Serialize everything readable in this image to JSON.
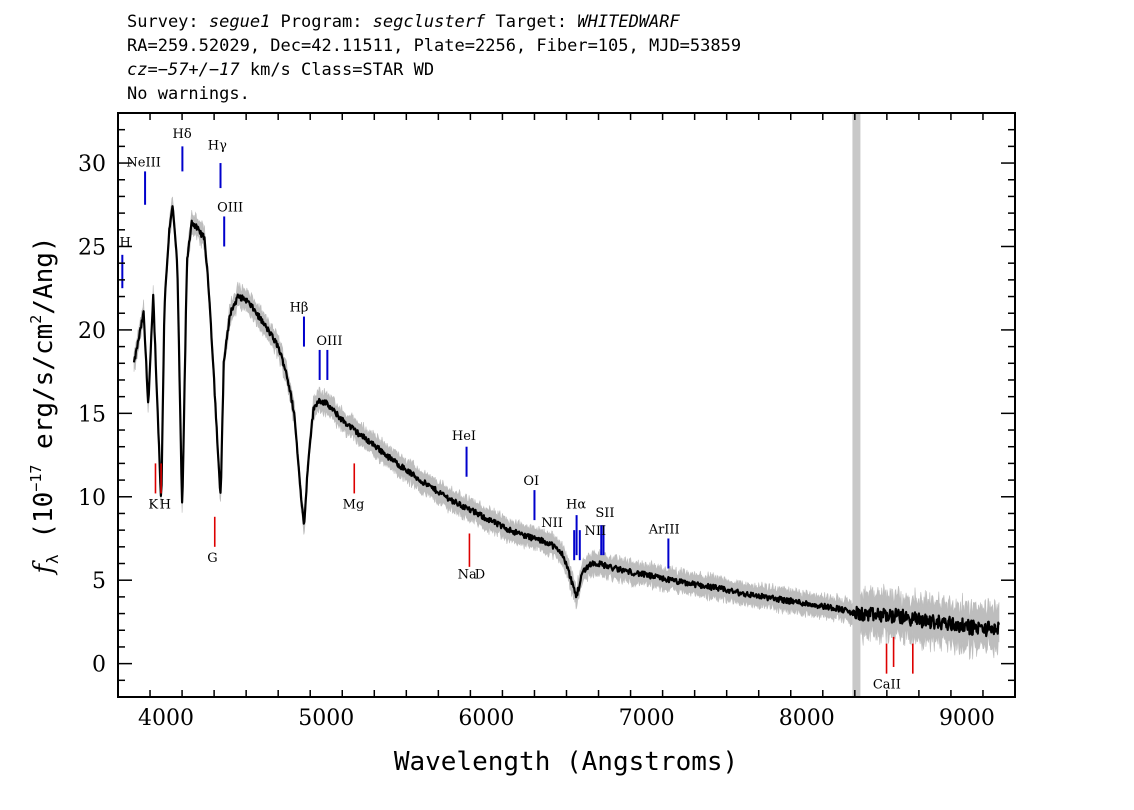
{
  "header": {
    "survey_label": "Survey: ",
    "survey": "segue1",
    "program_label": " Program: ",
    "program": "segclusterf",
    "target_label": " Target: ",
    "target": "WHITEDWARF",
    "line2": "RA=259.52029, Dec=42.11511, Plate=2256, Fiber=105, MJD=53859",
    "cz_label": "cz",
    "cz_value": "=−57+/−17",
    "cz_units": " km/s Class=STAR WD",
    "line4": "No warnings."
  },
  "colors": {
    "flux": "#000000",
    "error_band": "#bdbdbd",
    "masked_region": "#c8c8c8",
    "emission_marker": "#0000cc",
    "absorption_marker": "#dd0000"
  },
  "chart_data": {
    "type": "line",
    "title": "",
    "xlabel": "Wavelength (Angstroms)",
    "ylabel_prefix": "f",
    "ylabel_sub": "λ",
    "ylabel_a": " (10",
    "ylabel_exp1": "−17",
    "ylabel_b": " erg/s/cm",
    "ylabel_exp2": "2",
    "ylabel_c": "/Ang)",
    "xlim": [
      3700,
      9300
    ],
    "ylim": [
      -2,
      33
    ],
    "xticks": [
      4000,
      5000,
      6000,
      7000,
      8000,
      9000
    ],
    "yticks": [
      0,
      5,
      10,
      15,
      20,
      25,
      30
    ],
    "grid": false,
    "masked_region_x": 8310,
    "series": [
      {
        "x": [
          3800,
          3830,
          3860,
          3889,
          3920,
          3950,
          3970,
          3990,
          4020,
          4040,
          4070,
          4101,
          4130,
          4160,
          4200,
          4240,
          4270,
          4300,
          4330,
          4341,
          4360,
          4400,
          4450,
          4500,
          4550,
          4600,
          4650,
          4700,
          4750,
          4800,
          4830,
          4861,
          4890,
          4920,
          4950,
          5000,
          5100,
          5200,
          5300,
          5400,
          5500,
          5600,
          5700,
          5800,
          5900,
          6000,
          6100,
          6200,
          6300,
          6400,
          6480,
          6520,
          6563,
          6600,
          6650,
          6700,
          6800,
          7000,
          7200,
          7400,
          7600,
          7800,
          8000,
          8200,
          8300,
          8400,
          8500,
          8600,
          8700,
          8800,
          8900,
          9000,
          9100,
          9200
        ],
        "y": [
          18,
          19.5,
          21,
          15.5,
          22,
          14.5,
          9.5,
          21.5,
          26,
          27.5,
          24,
          9,
          24,
          26.5,
          26,
          25.5,
          22,
          17,
          11.5,
          10,
          18,
          21,
          22,
          21.8,
          21.2,
          20.5,
          19.8,
          19,
          17.5,
          15,
          11.5,
          8.2,
          12.5,
          15.2,
          15.8,
          15.6,
          14.6,
          13.8,
          13.1,
          12.3,
          11.6,
          10.9,
          10.3,
          9.7,
          9.2,
          8.7,
          8.2,
          7.8,
          7.5,
          7.2,
          6.5,
          5.3,
          4.0,
          5.5,
          6.0,
          6.0,
          5.7,
          5.3,
          4.9,
          4.6,
          4.2,
          3.9,
          3.6,
          3.3,
          3.0,
          2.9,
          2.9,
          2.8,
          2.6,
          2.5,
          2.4,
          2.2,
          2.1,
          2.1
        ]
      }
    ],
    "emission_lines": [
      {
        "label": "H",
        "x": 3727,
        "y0": 22.5,
        "y1": 24.5
      },
      {
        "label": "NeIII",
        "x": 3869,
        "y0": 27.5,
        "y1": 29.5
      },
      {
        "label": "Hδ",
        "x": 4102,
        "y0": 29.5,
        "y1": 31.0
      },
      {
        "label": "Hγ",
        "x": 4340,
        "y0": 28.5,
        "y1": 30.0
      },
      {
        "label": "OIII",
        "x": 4363,
        "y0": 25.0,
        "y1": 26.8
      },
      {
        "label": "Hβ",
        "x": 4861,
        "y0": 19.0,
        "y1": 20.8
      },
      {
        "label": "OIII",
        "x": 4959,
        "y0": 17.0,
        "y1": 18.8
      },
      {
        "label": "OIII",
        "x": 5007,
        "y0": 17.0,
        "y1": 18.8
      },
      {
        "label": "HeI",
        "x": 5876,
        "y0": 11.2,
        "y1": 13.0
      },
      {
        "label": "OI",
        "x": 6300,
        "y0": 8.6,
        "y1": 10.4
      },
      {
        "label": "NII",
        "x": 6548,
        "y0": 6.2,
        "y1": 8.0
      },
      {
        "label": "Hα",
        "x": 6563,
        "y0": 6.5,
        "y1": 8.9
      },
      {
        "label": "NII",
        "x": 6583,
        "y0": 6.2,
        "y1": 8.0
      },
      {
        "label": "SII",
        "x": 6717,
        "y0": 6.5,
        "y1": 8.3
      },
      {
        "label": "SII",
        "x": 6731,
        "y0": 6.5,
        "y1": 8.3
      },
      {
        "label": "ArIII",
        "x": 7136,
        "y0": 5.7,
        "y1": 7.5
      }
    ],
    "emission_label_positions": [
      {
        "text": "H",
        "x": 3745,
        "y": 25.0
      },
      {
        "text": "NeIII",
        "x": 3860,
        "y": 29.8
      },
      {
        "text": "Hδ",
        "x": 4100,
        "y": 31.5
      },
      {
        "text": "Hγ",
        "x": 4320,
        "y": 30.8
      },
      {
        "text": "OIII",
        "x": 4400,
        "y": 27.1
      },
      {
        "text": "Hβ",
        "x": 4830,
        "y": 21.1
      },
      {
        "text": "OIII",
        "x": 5020,
        "y": 19.1
      },
      {
        "text": "HeI",
        "x": 5860,
        "y": 13.4
      },
      {
        "text": "OI",
        "x": 6280,
        "y": 10.7
      },
      {
        "text": "NII",
        "x": 6410,
        "y": 8.2
      },
      {
        "text": "Hα",
        "x": 6560,
        "y": 9.3
      },
      {
        "text": "SII",
        "x": 6740,
        "y": 8.8
      },
      {
        "text": "NII",
        "x": 6680,
        "y": 7.7
      },
      {
        "text": "ArIII",
        "x": 7110,
        "y": 7.8
      }
    ],
    "absorption_lines": [
      {
        "x": 3934,
        "y0": 10.2,
        "y1": 12.0
      },
      {
        "x": 3969,
        "y0": 10.2,
        "y1": 12.0
      },
      {
        "x": 4304,
        "y0": 7.0,
        "y1": 8.8
      },
      {
        "x": 5175,
        "y0": 10.2,
        "y1": 12.0
      },
      {
        "x": 5894,
        "y0": 5.8,
        "y1": 7.8
      },
      {
        "x": 8498,
        "y0": -0.6,
        "y1": 1.2
      },
      {
        "x": 8542,
        "y0": -0.2,
        "y1": 1.6
      },
      {
        "x": 8662,
        "y0": -0.6,
        "y1": 1.2
      }
    ],
    "absorption_labels": [
      {
        "text": "K",
        "x": 3920,
        "y": 9.3
      },
      {
        "text": "H",
        "x": 3995,
        "y": 9.3
      },
      {
        "text": "G",
        "x": 4290,
        "y": 6.1
      },
      {
        "text": "Mg",
        "x": 5170,
        "y": 9.3
      },
      {
        "text": "Na",
        "x": 5880,
        "y": 5.1
      },
      {
        "text": "D",
        "x": 5960,
        "y": 5.1
      },
      {
        "text": "CaII",
        "x": 8500,
        "y": -1.5
      }
    ]
  }
}
